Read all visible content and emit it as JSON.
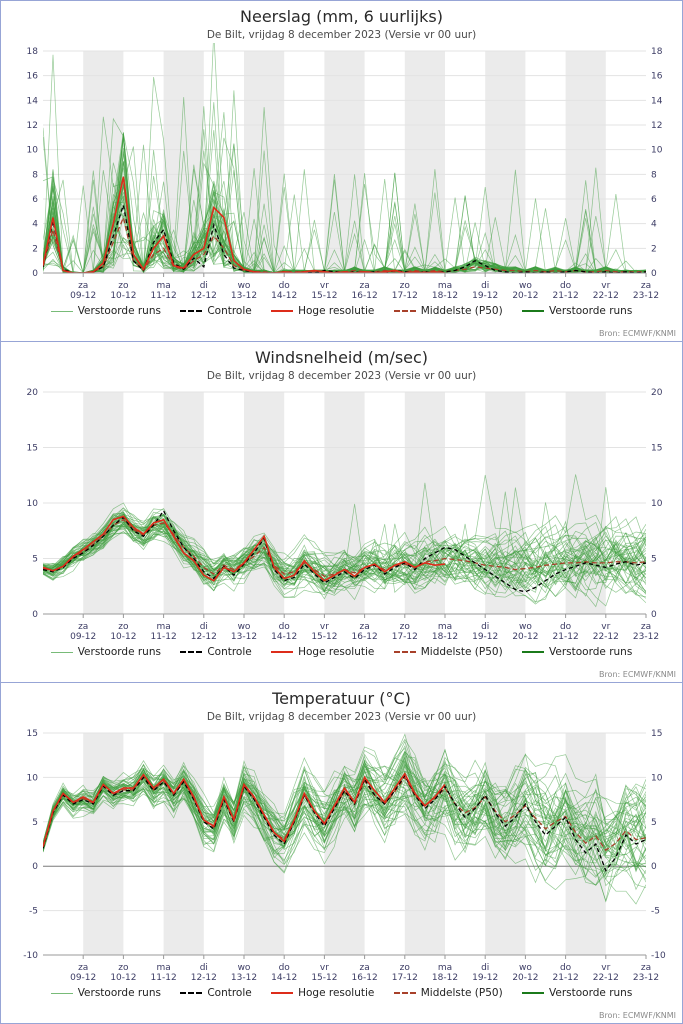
{
  "source_label": "Bron: ECMWF/KNMI",
  "colors": {
    "ensemble": "#3f9e3f",
    "ensemble_solid": "#1b7a1b",
    "control": "#000000",
    "hires": "#dd2c1a",
    "median": "#a8402a",
    "band": "#ebebeb",
    "grid": "#e3e3e3",
    "axis": "#999999",
    "zero_line": "#808080",
    "tick_text": "#3c3c64",
    "panel_border": "#97a5d6"
  },
  "legend": [
    {
      "label": "Verstoorde runs",
      "style": "ensemble-thin"
    },
    {
      "label": "Controle",
      "style": "control-dashed"
    },
    {
      "label": "Hoge resolutie",
      "style": "hires-solid"
    },
    {
      "label": "Middelste (P50)",
      "style": "median-dashed"
    },
    {
      "label": "Verstoorde runs",
      "style": "ensemble-solid"
    }
  ],
  "x_ticks": [
    {
      "day": "za",
      "date": "09-12"
    },
    {
      "day": "zo",
      "date": "10-12"
    },
    {
      "day": "ma",
      "date": "11-12"
    },
    {
      "day": "di",
      "date": "12-12"
    },
    {
      "day": "wo",
      "date": "13-12"
    },
    {
      "day": "do",
      "date": "14-12"
    },
    {
      "day": "vr",
      "date": "15-12"
    },
    {
      "day": "za",
      "date": "16-12"
    },
    {
      "day": "zo",
      "date": "17-12"
    },
    {
      "day": "ma",
      "date": "18-12"
    },
    {
      "day": "di",
      "date": "19-12"
    },
    {
      "day": "wo",
      "date": "20-12"
    },
    {
      "day": "do",
      "date": "21-12"
    },
    {
      "day": "vr",
      "date": "22-12"
    },
    {
      "day": "za",
      "date": "23-12"
    }
  ],
  "chart_data": [
    {
      "type": "line",
      "title": "Neerslag (mm, 6 uurlijks)",
      "subtitle": "De Bilt, vrijdag 8 december 2023 (Versie vr 00 uur)",
      "xlabel": "",
      "ylabel": "",
      "ylim": [
        0,
        18
      ],
      "yticks": [
        0,
        2,
        4,
        6,
        8,
        10,
        12,
        14,
        16,
        18
      ],
      "x_days": 15,
      "points_per_day": 4,
      "series": [
        {
          "name": "Controle",
          "style": "control-dashed",
          "values": [
            0.5,
            4.2,
            0.3,
            0,
            0,
            0.1,
            0.5,
            3.0,
            5.5,
            1.0,
            0.2,
            2.5,
            3.5,
            0.8,
            0.3,
            1.2,
            0.5,
            3.9,
            1.5,
            0.4,
            0.2,
            0.1,
            0,
            0,
            0.1,
            0,
            0.1,
            0,
            0.2,
            0.1,
            0,
            0.1,
            0,
            0.1,
            0,
            0.2,
            0.1,
            0,
            0.1,
            0,
            0.1,
            0.2,
            0.5,
            1.0,
            0.6,
            0.2,
            0.1,
            0,
            0.1,
            0,
            0.1,
            0,
            0.1,
            0.2,
            0.1,
            0,
            0.1,
            0,
            0.1,
            0,
            0.1
          ]
        },
        {
          "name": "Hoge resolutie",
          "style": "hires-solid",
          "values": [
            0.6,
            4.5,
            0.2,
            0,
            0,
            0.1,
            0.8,
            4.0,
            7.8,
            1.5,
            0.3,
            2.0,
            3.0,
            0.6,
            0.4,
            1.5,
            2.0,
            5.3,
            4.5,
            1.0,
            0.3,
            0.1,
            0,
            0,
            0.1,
            0,
            0.1,
            0.2,
            0.1,
            0,
            0.1,
            0,
            0.1,
            0,
            0.1,
            0.2,
            0,
            0.1,
            0,
            0.1,
            0
          ]
        },
        {
          "name": "Middelste (P50)",
          "style": "median-dashed",
          "values": [
            0.5,
            3.5,
            0.2,
            0,
            0,
            0.1,
            0.5,
            2.5,
            4.5,
            1.0,
            0.2,
            1.5,
            2.0,
            0.5,
            0.3,
            1.0,
            1.5,
            3.0,
            2.0,
            0.6,
            0.2,
            0.1,
            0.1,
            0,
            0.1,
            0.1,
            0.1,
            0.1,
            0.1,
            0.1,
            0.1,
            0.2,
            0.1,
            0.1,
            0.2,
            0.1,
            0.1,
            0.2,
            0.1,
            0.2,
            0.1,
            0.2,
            0.3,
            0.5,
            0.4,
            0.3,
            0.2,
            0.2,
            0.1,
            0.2,
            0.1,
            0.2,
            0.1,
            0.2,
            0.1,
            0.1,
            0.2,
            0.1,
            0.1,
            0.1,
            0.1
          ]
        }
      ],
      "ensemble": {
        "name": "Verstoorde runs",
        "n_members": 48,
        "seed": 11,
        "mode": "precip",
        "factor_min": 0.15,
        "factor_max": 2.6,
        "early_fraction": 0.38,
        "spike_prob_early": 0.1,
        "spike_prob_late": 0.05,
        "spike_max_early": 14,
        "spike_max_late": 9
      }
    },
    {
      "type": "line",
      "title": "Windsnelheid (m/sec)",
      "subtitle": "De Bilt, vrijdag 8 december 2023 (Versie vr 00 uur)",
      "xlabel": "",
      "ylabel": "",
      "ylim": [
        0,
        20
      ],
      "yticks": [
        0,
        5,
        10,
        15,
        20
      ],
      "x_days": 15,
      "points_per_day": 4,
      "series": [
        {
          "name": "Controle",
          "style": "control-dashed",
          "values": [
            4.0,
            3.8,
            4.2,
            5.0,
            5.5,
            6.2,
            7.0,
            8.0,
            8.7,
            7.5,
            7.0,
            8.0,
            9.3,
            7.5,
            6.0,
            5.0,
            3.8,
            3.2,
            4.3,
            3.5,
            4.5,
            5.5,
            6.8,
            4.0,
            3.0,
            3.3,
            4.5,
            3.6,
            2.8,
            3.3,
            3.8,
            3.2,
            4.0,
            4.4,
            3.6,
            4.2,
            4.6,
            4.0,
            5.0,
            5.5,
            6.0,
            5.8,
            5.2,
            4.6,
            4.0,
            3.4,
            2.8,
            2.2,
            2.0,
            2.4,
            3.0,
            3.6,
            4.0,
            4.3,
            4.6,
            4.4,
            4.2,
            4.5,
            4.7,
            4.4,
            4.6
          ]
        },
        {
          "name": "Hoge resolutie",
          "style": "hires-solid",
          "values": [
            4.2,
            3.9,
            4.3,
            5.2,
            5.8,
            6.5,
            7.2,
            8.5,
            8.8,
            7.8,
            7.2,
            8.2,
            8.5,
            7.0,
            5.5,
            4.8,
            3.5,
            3.0,
            4.2,
            3.8,
            4.6,
            5.8,
            7.0,
            4.2,
            3.2,
            3.5,
            4.8,
            3.8,
            3.0,
            3.5,
            4.0,
            3.4,
            4.2,
            4.5,
            3.8,
            4.4,
            4.7,
            4.2,
            4.6,
            4.4,
            4.5
          ]
        },
        {
          "name": "Middelste (P50)",
          "style": "median-dashed",
          "values": [
            4.1,
            3.9,
            4.3,
            5.1,
            5.6,
            6.3,
            7.0,
            8.0,
            8.5,
            7.6,
            7.1,
            8.0,
            8.2,
            7.2,
            6.0,
            5.2,
            4.2,
            3.6,
            4.4,
            4.0,
            4.6,
            5.2,
            6.0,
            4.4,
            3.6,
            3.8,
            4.6,
            4.0,
            3.4,
            3.6,
            4.0,
            3.7,
            4.2,
            4.4,
            4.0,
            4.3,
            4.5,
            4.2,
            4.7,
            4.8,
            5.0,
            4.9,
            4.8,
            4.6,
            4.4,
            4.3,
            4.2,
            4.0,
            4.1,
            4.2,
            4.4,
            4.5,
            4.6,
            4.6,
            4.7,
            4.6,
            4.6,
            4.7,
            4.7,
            4.6,
            4.7
          ]
        }
      ],
      "ensemble": {
        "name": "Verstoorde runs",
        "n_members": 48,
        "seed": 23,
        "mode": "additive",
        "damp": 0.7,
        "walk": 1.5,
        "grow0": 0.35,
        "grow1": 1.0,
        "floor": 0.4,
        "spike_prob": 0.012,
        "spike_max": 7
      }
    },
    {
      "type": "line",
      "title": "Temperatuur (°C)",
      "subtitle": "De Bilt, vrijdag 8 december 2023 (Versie vr 00 uur)",
      "xlabel": "",
      "ylabel": "",
      "ylim": [
        -10,
        15
      ],
      "yticks": [
        -10,
        -5,
        0,
        5,
        10,
        15
      ],
      "x_days": 15,
      "points_per_day": 4,
      "series": [
        {
          "name": "Controle",
          "style": "control-dashed",
          "values": [
            2.0,
            6.0,
            8.0,
            7.0,
            7.5,
            7.0,
            9.0,
            8.0,
            8.5,
            8.5,
            10.0,
            8.5,
            9.5,
            8.0,
            9.5,
            7.5,
            5.0,
            4.2,
            7.5,
            5.0,
            9.0,
            7.5,
            5.5,
            3.5,
            2.5,
            5.0,
            8.0,
            6.0,
            4.5,
            6.5,
            8.5,
            7.0,
            9.8,
            8.0,
            7.0,
            8.5,
            10.2,
            8.0,
            6.5,
            7.5,
            9.0,
            7.0,
            5.5,
            6.5,
            8.0,
            6.0,
            4.5,
            5.5,
            7.0,
            5.0,
            3.5,
            4.5,
            5.5,
            3.0,
            1.5,
            2.5,
            -0.5,
            1.0,
            3.5,
            2.5,
            3.0
          ]
        },
        {
          "name": "Hoge resolutie",
          "style": "hires-solid",
          "values": [
            2.2,
            6.2,
            8.2,
            7.2,
            7.8,
            7.2,
            9.2,
            8.2,
            8.8,
            8.8,
            10.3,
            8.8,
            9.8,
            8.2,
            9.8,
            7.8,
            5.2,
            4.5,
            7.8,
            5.2,
            9.2,
            7.8,
            5.8,
            3.8,
            2.8,
            5.2,
            8.2,
            6.2,
            4.8,
            6.8,
            8.8,
            7.2,
            10.0,
            8.5,
            7.2,
            8.8,
            10.4,
            8.2,
            6.8,
            7.8,
            9.2
          ]
        },
        {
          "name": "Middelste (P50)",
          "style": "median-dashed",
          "values": [
            2.1,
            6.0,
            8.1,
            7.1,
            7.6,
            7.1,
            9.1,
            8.1,
            8.6,
            8.6,
            10.0,
            8.6,
            9.6,
            8.1,
            9.6,
            7.6,
            5.1,
            4.4,
            7.6,
            5.2,
            9.0,
            7.6,
            5.6,
            3.8,
            3.0,
            5.2,
            8.0,
            6.2,
            4.8,
            6.6,
            8.4,
            7.0,
            9.6,
            8.0,
            7.0,
            8.4,
            10.0,
            8.0,
            6.8,
            7.6,
            8.8,
            7.0,
            6.0,
            6.6,
            7.8,
            6.2,
            5.0,
            5.8,
            6.8,
            5.4,
            4.2,
            5.0,
            5.6,
            3.8,
            2.6,
            3.4,
            1.8,
            2.6,
            4.0,
            3.0,
            3.2
          ]
        }
      ],
      "ensemble": {
        "name": "Verstoorde runs",
        "n_members": 48,
        "seed": 37,
        "mode": "additive",
        "damp": 0.75,
        "walk": 1.9,
        "grow0": 0.3,
        "grow1": 1.6
      }
    }
  ]
}
